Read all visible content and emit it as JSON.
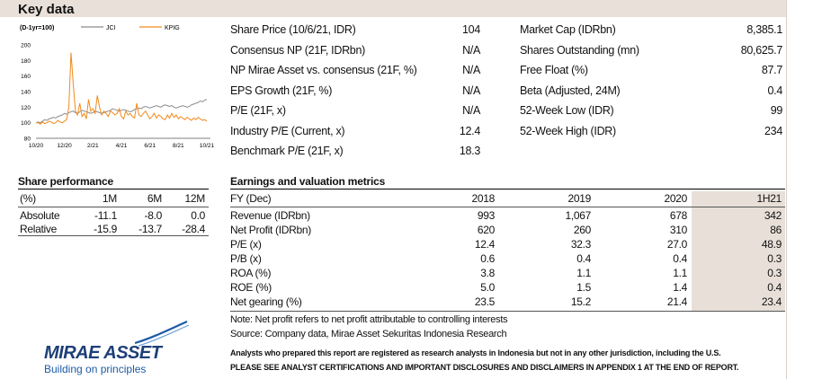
{
  "section_title": "Key data",
  "chart_data": {
    "type": "line",
    "title": "(D-1yr=100)",
    "x_ticks": [
      "10/20",
      "12/20",
      "2/21",
      "4/21",
      "6/21",
      "8/21",
      "10/21"
    ],
    "y_ticks": [
      80,
      100,
      120,
      140,
      160,
      180,
      200
    ],
    "ylim": [
      80,
      200
    ],
    "legend": "top",
    "series": [
      {
        "name": "JCI",
        "color": "#8c8c8c",
        "values": [
          100,
          101,
          100,
          102,
          104,
          103,
          105,
          106,
          107,
          106,
          108,
          109,
          110,
          112,
          111,
          113,
          114,
          115,
          113,
          112,
          114,
          116,
          115,
          114,
          113,
          112,
          113,
          115,
          114,
          113,
          112,
          113,
          114,
          115,
          116,
          118,
          117,
          116,
          115,
          116,
          117,
          116,
          115,
          114,
          115,
          117,
          118,
          119,
          118,
          120,
          121,
          120,
          119,
          120,
          121,
          122,
          121,
          120,
          122,
          123,
          122,
          121,
          122,
          120,
          119,
          120,
          121,
          122,
          121,
          120,
          121,
          123,
          124,
          125,
          126,
          128,
          127,
          129,
          130
        ]
      },
      {
        "name": "KPIG",
        "color": "#f08a1c",
        "values": [
          100,
          100,
          98,
          101,
          99,
          100,
          102,
          101,
          99,
          100,
          103,
          101,
          100,
          102,
          104,
          120,
          190,
          150,
          115,
          110,
          125,
          108,
          112,
          105,
          130,
          115,
          118,
          112,
          135,
          120,
          110,
          115,
          112,
          108,
          115,
          113,
          110,
          112,
          118,
          108,
          105,
          115,
          110,
          112,
          108,
          106,
          125,
          110,
          108,
          112,
          115,
          110,
          105,
          108,
          112,
          106,
          110,
          108,
          105,
          104,
          110,
          106,
          112,
          107,
          110,
          105,
          108,
          106,
          104,
          107,
          105,
          103,
          106,
          104,
          107,
          105,
          103,
          104,
          102
        ]
      }
    ]
  },
  "key_data_left": [
    {
      "label": "Share Price (10/6/21, IDR)",
      "value": "104"
    },
    {
      "label": "Consensus NP (21F, IDRbn)",
      "value": "N/A"
    },
    {
      "label": "NP Mirae Asset vs. consensus (21F, %)",
      "value": "N/A"
    },
    {
      "label": "EPS Growth (21F, %)",
      "value": "N/A"
    },
    {
      "label": "P/E (21F, x)",
      "value": "N/A"
    },
    {
      "label": "Industry P/E (Current, x)",
      "value": "12.4"
    },
    {
      "label": "Benchmark P/E (21F, x)",
      "value": "18.3"
    }
  ],
  "key_data_right": [
    {
      "label": "Market Cap (IDRbn)",
      "value": "8,385.1"
    },
    {
      "label": "Shares Outstanding (mn)",
      "value": "80,625.7"
    },
    {
      "label": "Free Float (%)",
      "value": "87.7"
    },
    {
      "label": "Beta (Adjusted, 24M)",
      "value": "0.4"
    },
    {
      "label": "52-Week Low (IDR)",
      "value": "99"
    },
    {
      "label": "52-Week High (IDR)",
      "value": "234"
    }
  ],
  "share_performance": {
    "title": "Share performance",
    "headers": [
      "(%)",
      "1M",
      "6M",
      "12M"
    ],
    "rows": [
      [
        "Absolute",
        "-11.1",
        "-8.0",
        "0.0"
      ],
      [
        "Relative",
        "-15.9",
        "-13.7",
        "-28.4"
      ]
    ]
  },
  "earnings": {
    "title": "Earnings and valuation metrics",
    "headers": [
      "FY (Dec)",
      "2018",
      "2019",
      "2020",
      "1H21"
    ],
    "rows": [
      [
        "Revenue (IDRbn)",
        "993",
        "1,067",
        "678",
        "342"
      ],
      [
        "Net Profit (IDRbn)",
        "620",
        "260",
        "310",
        "86"
      ],
      [
        "P/E (x)",
        "12.4",
        "32.3",
        "27.0",
        "48.9"
      ],
      [
        "P/B (x)",
        "0.6",
        "0.4",
        "0.4",
        "0.3"
      ],
      [
        "ROA (%)",
        "3.8",
        "1.1",
        "1.1",
        "0.3"
      ],
      [
        "ROE (%)",
        "5.0",
        "1.5",
        "1.4",
        "0.4"
      ],
      [
        "Net gearing (%)",
        "23.5",
        "15.2",
        "21.4",
        "23.4"
      ]
    ],
    "note1": "Note: Net profit refers to net profit attributable to controlling interests",
    "note2": "Source: Company data, Mirae Asset Sekuritas Indonesia Research"
  },
  "disclaimer": {
    "line1": "Analysts who prepared this report are registered as research analysts in Indonesia but not in any other jurisdiction, including the U.S.",
    "line2": "PLEASE SEE ANALYST CERTIFICATIONS AND IMPORTANT DISCLOSURES AND DISCLAIMERS IN APPENDIX 1 AT THE END OF REPORT."
  },
  "logo": {
    "name": "MIRAE ASSET",
    "tagline": "Building on principles",
    "color": "#1d3f77"
  }
}
